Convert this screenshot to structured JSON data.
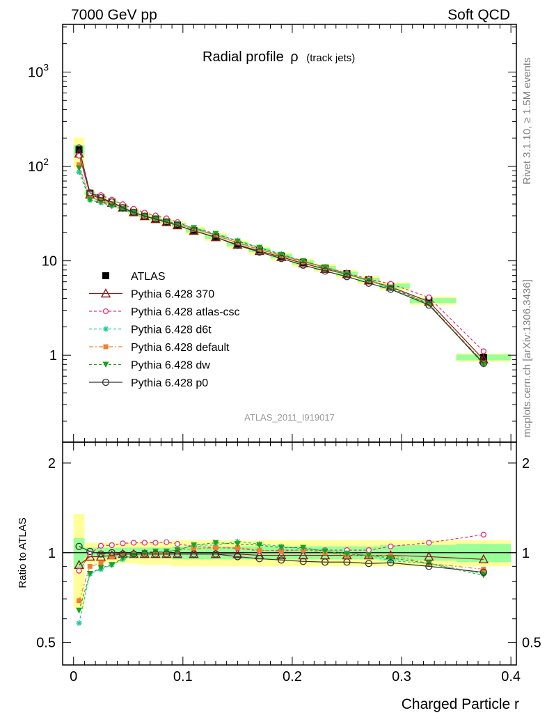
{
  "header": {
    "left": "7000 GeV pp",
    "right": "Soft QCD"
  },
  "side_labels": {
    "rivet": "Rivet 3.1.10, ≥ 1.5M events",
    "mcplots": "mcplots.cern.ch [arXiv:1306.3436]"
  },
  "chart_data": [
    {
      "type": "scatter",
      "panel": "main",
      "title": "Radial profile",
      "title_symbol": "ρ",
      "title_suffix": "(track jets)",
      "analysis_tag": "ATLAS_2011_I919017",
      "yscale": "log",
      "ylim": [
        0.12,
        3200
      ],
      "xlim": [
        -0.01,
        0.405
      ],
      "ytick_labels": [
        "1",
        "10",
        "10²",
        "10³"
      ],
      "legend_placement": "center-left",
      "x": [
        0.005,
        0.015,
        0.025,
        0.035,
        0.045,
        0.055,
        0.065,
        0.075,
        0.085,
        0.095,
        0.11,
        0.13,
        0.15,
        0.17,
        0.19,
        0.21,
        0.23,
        0.25,
        0.27,
        0.29,
        0.325,
        0.375
      ],
      "series": [
        {
          "name": "ATLAS",
          "color": "#000000",
          "marker": "square-filled",
          "line": "none",
          "values": [
            150,
            52,
            47,
            42,
            37,
            33,
            30,
            28,
            26,
            24,
            21,
            18,
            15,
            13,
            11.2,
            9.6,
            8.4,
            7.3,
            6.3,
            5.4,
            3.8,
            0.95
          ],
          "band_inner": [
            0.12,
            0.04,
            0.04,
            0.04,
            0.04,
            0.04,
            0.04,
            0.04,
            0.04,
            0.05,
            0.05,
            0.05,
            0.05,
            0.05,
            0.05,
            0.05,
            0.05,
            0.05,
            0.05,
            0.06,
            0.06,
            0.07
          ],
          "band_outer": [
            0.35,
            0.08,
            0.08,
            0.08,
            0.08,
            0.08,
            0.09,
            0.09,
            0.09,
            0.1,
            0.1,
            0.1,
            0.1,
            0.1,
            0.1,
            0.1,
            0.1,
            0.1,
            0.1,
            0.1,
            0.1,
            0.1
          ]
        },
        {
          "name": "Pythia 6.428 370",
          "color": "#8b1a1a",
          "marker": "triangle-open",
          "line": "solid",
          "values": [
            137,
            50.4,
            45.6,
            41.2,
            36.6,
            32.7,
            29.7,
            27.7,
            25.7,
            23.8,
            20.8,
            17.8,
            14.8,
            12.7,
            11.0,
            9.4,
            8.2,
            7.2,
            6.2,
            5.3,
            3.7,
            0.9
          ]
        },
        {
          "name": "Pythia 6.428 atlas-csc",
          "color": "#e8306a",
          "marker": "circle-open-small",
          "line": "dashed",
          "values": [
            130,
            51.5,
            49.6,
            44.5,
            39.8,
            35.6,
            32.4,
            30.2,
            28.2,
            25.7,
            22.0,
            18.7,
            15.5,
            13.2,
            11.4,
            9.8,
            8.6,
            7.4,
            6.4,
            5.7,
            4.1,
            1.1
          ]
        },
        {
          "name": "Pythia 6.428 d6t",
          "color": "#22c8a0",
          "marker": "star",
          "line": "dashed",
          "values": [
            87,
            44,
            41.4,
            38.2,
            35.1,
            32.3,
            30.0,
            28.0,
            26.3,
            24.5,
            22.3,
            19.1,
            16.4,
            13.9,
            11.8,
            9.9,
            8.6,
            7.3,
            6.2,
            5.1,
            3.5,
            0.8
          ]
        },
        {
          "name": "Pythia 6.428 default",
          "color": "#f08030",
          "marker": "square-filled-small",
          "line": "dashdot",
          "values": [
            104,
            46.8,
            43.2,
            40.7,
            36.3,
            32.7,
            29.7,
            28.0,
            26.0,
            24.5,
            21.6,
            18.7,
            15.6,
            13.3,
            11.3,
            9.8,
            8.4,
            7.2,
            6.2,
            5.3,
            3.5,
            0.84
          ]
        },
        {
          "name": "Pythia 6.428 dw",
          "color": "#20a020",
          "marker": "triangle-down-filled",
          "line": "dashed",
          "values": [
            96,
            44.2,
            41.8,
            38.2,
            35.5,
            32.3,
            30.0,
            28.3,
            26.3,
            24.5,
            22.3,
            19.4,
            16.1,
            13.8,
            11.6,
            10.0,
            8.5,
            7.2,
            6.2,
            5.2,
            3.5,
            0.8
          ]
        },
        {
          "name": "Pythia 6.428 p0",
          "color": "#333333",
          "marker": "circle-open",
          "line": "solid",
          "values": [
            157,
            52.5,
            46.5,
            42.0,
            36.6,
            32.7,
            29.7,
            27.7,
            25.7,
            23.8,
            20.8,
            17.8,
            14.6,
            12.4,
            10.6,
            9.0,
            7.8,
            6.8,
            5.8,
            5.0,
            3.4,
            0.82
          ]
        }
      ]
    },
    {
      "type": "scatter",
      "panel": "ratio",
      "ylabel": "Ratio to ATLAS",
      "xlabel": "Charged Particle r",
      "yscale": "log",
      "ylim": [
        0.42,
        2.35
      ],
      "xlim": [
        -0.01,
        0.405
      ],
      "ytick_labels": [
        "0.5",
        "1",
        "2"
      ],
      "xtick_labels": [
        "0",
        "0.1",
        "0.2",
        "0.3",
        "0.4"
      ],
      "x": [
        0.005,
        0.015,
        0.025,
        0.035,
        0.045,
        0.055,
        0.065,
        0.075,
        0.085,
        0.095,
        0.11,
        0.13,
        0.15,
        0.17,
        0.19,
        0.21,
        0.23,
        0.25,
        0.27,
        0.29,
        0.325,
        0.375
      ],
      "series": [
        {
          "name": "Pythia 6.428 370",
          "values": [
            0.91,
            0.97,
            0.97,
            0.98,
            0.99,
            0.99,
            0.99,
            0.99,
            0.99,
            0.99,
            0.99,
            0.99,
            0.99,
            0.98,
            0.98,
            0.98,
            0.98,
            0.98,
            0.98,
            0.98,
            0.97,
            0.95
          ]
        },
        {
          "name": "Pythia 6.428 atlas-csc",
          "values": [
            0.87,
            0.99,
            1.055,
            1.06,
            1.075,
            1.08,
            1.08,
            1.08,
            1.085,
            1.07,
            1.05,
            1.04,
            1.035,
            1.015,
            1.02,
            1.02,
            1.02,
            1.02,
            1.02,
            1.05,
            1.08,
            1.15
          ]
        },
        {
          "name": "Pythia 6.428 d6t",
          "values": [
            0.58,
            0.85,
            0.88,
            0.91,
            0.95,
            0.98,
            1.0,
            1.0,
            1.01,
            1.02,
            1.06,
            1.06,
            1.09,
            1.07,
            1.05,
            1.03,
            1.02,
            1.0,
            0.98,
            0.94,
            0.92,
            0.85
          ]
        },
        {
          "name": "Pythia 6.428 default",
          "values": [
            0.69,
            0.9,
            0.92,
            0.97,
            0.98,
            0.99,
            0.99,
            1.0,
            1.0,
            1.02,
            1.03,
            1.04,
            1.04,
            1.02,
            1.01,
            1.02,
            1.0,
            0.98,
            0.98,
            0.98,
            0.92,
            0.88
          ]
        },
        {
          "name": "Pythia 6.428 dw",
          "values": [
            0.64,
            0.85,
            0.89,
            0.91,
            0.96,
            0.98,
            1.0,
            1.01,
            1.01,
            1.02,
            1.06,
            1.08,
            1.07,
            1.06,
            1.04,
            1.04,
            1.01,
            0.99,
            0.98,
            0.96,
            0.92,
            0.84
          ]
        },
        {
          "name": "Pythia 6.428 p0",
          "values": [
            1.05,
            1.01,
            0.99,
            1.0,
            0.99,
            0.99,
            0.99,
            0.99,
            0.99,
            0.99,
            0.99,
            0.99,
            0.97,
            0.955,
            0.945,
            0.935,
            0.93,
            0.93,
            0.92,
            0.925,
            0.9,
            0.86
          ]
        }
      ]
    }
  ]
}
